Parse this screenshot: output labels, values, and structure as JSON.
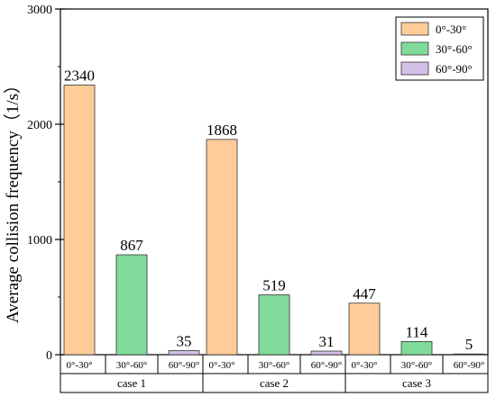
{
  "chart_data": {
    "type": "bar",
    "title": "",
    "xlabel": "",
    "ylabel": "Average collision frequency（1/s）",
    "ylim": [
      0,
      3000
    ],
    "yticks": [
      "0",
      "1000",
      "2000",
      "3000"
    ],
    "ytick_values": [
      0,
      1000,
      2000,
      3000
    ],
    "grid": false,
    "legend_position": "top-right",
    "groups": [
      {
        "label": "case 1",
        "bars": [
          {
            "series": "0°-30°",
            "category": "0°-30°",
            "value": 2340,
            "value_label": "2340"
          },
          {
            "series": "30°-60°",
            "category": "30°-60°",
            "value": 867,
            "value_label": "867"
          },
          {
            "series": "60°-90°",
            "category": "60°-90°",
            "value": 35,
            "value_label": "35"
          }
        ]
      },
      {
        "label": "case 2",
        "bars": [
          {
            "series": "0°-30°",
            "category": "0°-30°",
            "value": 1868,
            "value_label": "1868"
          },
          {
            "series": "30°-60°",
            "category": "30°-60°",
            "value": 519,
            "value_label": "519"
          },
          {
            "series": "60°-90°",
            "category": "60°-90°",
            "value": 31,
            "value_label": "31"
          }
        ]
      },
      {
        "label": "case 3",
        "bars": [
          {
            "series": "0°-30°",
            "category": "0°-30°",
            "value": 447,
            "value_label": "447"
          },
          {
            "series": "30°-60°",
            "category": "30°-60°",
            "value": 114,
            "value_label": "114"
          },
          {
            "series": "60°-90°",
            "category": "60°-90°",
            "value": 5,
            "value_label": "5"
          }
        ]
      }
    ],
    "series": [
      {
        "name": "0°-30°",
        "color": "#FFCC99",
        "values": [
          2340,
          1868,
          447
        ]
      },
      {
        "name": "30°-60°",
        "color": "#80DB9B",
        "values": [
          867,
          519,
          114
        ]
      },
      {
        "name": "60°-90°",
        "color": "#D4BFE6",
        "values": [
          35,
          31,
          5
        ]
      }
    ]
  }
}
